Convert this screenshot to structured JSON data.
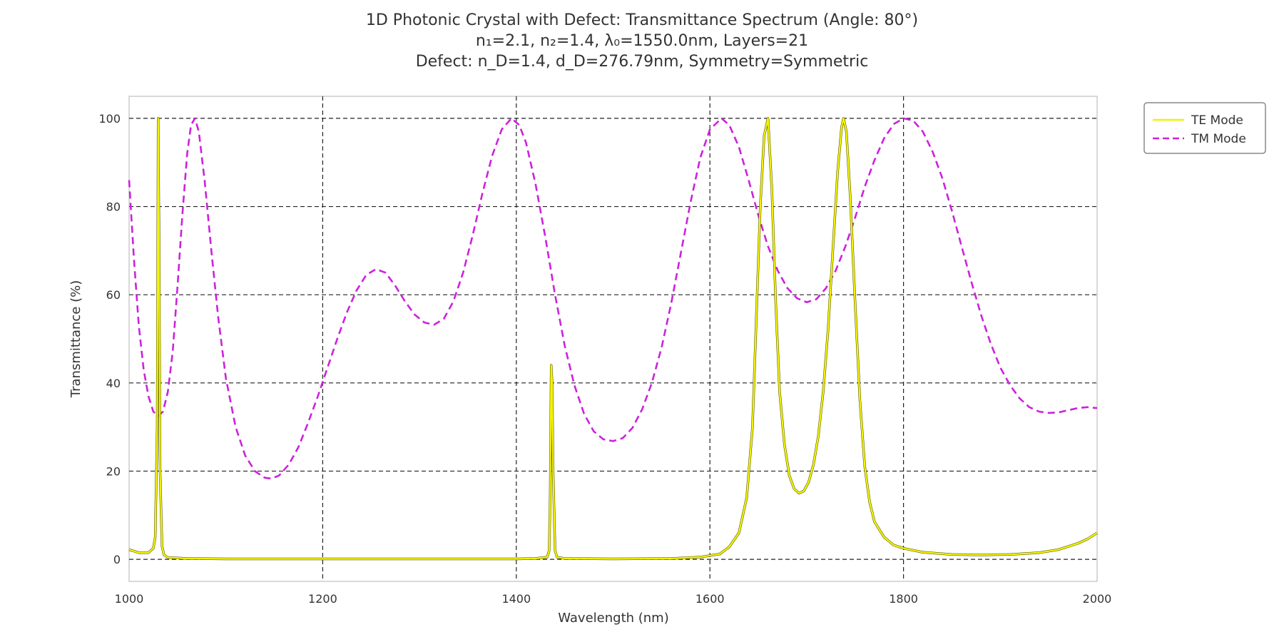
{
  "chart_data": {
    "type": "line",
    "title_lines": [
      "1D Photonic Crystal with Defect: Transmittance Spectrum (Angle: 80°)",
      "n₁=2.1, n₂=1.4, λ₀=1550.0nm, Layers=21",
      "Defect: n_D=1.4, d_D=276.79nm, Symmetry=Symmetric"
    ],
    "xlabel": "Wavelength (nm)",
    "ylabel": "Transmittance (%)",
    "xlim": [
      1000,
      2000
    ],
    "ylim": [
      -5,
      105
    ],
    "xticks": [
      1000,
      1200,
      1400,
      1600,
      1800,
      2000
    ],
    "xtick_labels": [
      "1000",
      "1200",
      "1400",
      "1600",
      "1800",
      "2000"
    ],
    "yticks": [
      0,
      20,
      40,
      60,
      80,
      100
    ],
    "ytick_labels": [
      "0",
      "20",
      "40",
      "60",
      "80",
      "100"
    ],
    "grid": true,
    "legend_position": "top-right",
    "series": [
      {
        "name": "TE Mode",
        "color": "#f2f200",
        "style": "solid",
        "points": [
          [
            1000,
            2.2
          ],
          [
            1010,
            1.5
          ],
          [
            1020,
            1.5
          ],
          [
            1025,
            2.5
          ],
          [
            1027,
            5
          ],
          [
            1029,
            30
          ],
          [
            1030,
            100
          ],
          [
            1031,
            70
          ],
          [
            1032,
            20
          ],
          [
            1034,
            3
          ],
          [
            1036,
            1
          ],
          [
            1040,
            0.4
          ],
          [
            1060,
            0.2
          ],
          [
            1100,
            0.1
          ],
          [
            1200,
            0.1
          ],
          [
            1300,
            0.1
          ],
          [
            1400,
            0.1
          ],
          [
            1420,
            0.2
          ],
          [
            1432,
            0.5
          ],
          [
            1434,
            2
          ],
          [
            1435,
            14
          ],
          [
            1436,
            44
          ],
          [
            1437,
            40
          ],
          [
            1438,
            20
          ],
          [
            1440,
            2
          ],
          [
            1442,
            0.5
          ],
          [
            1450,
            0.2
          ],
          [
            1500,
            0.1
          ],
          [
            1560,
            0.2
          ],
          [
            1590,
            0.5
          ],
          [
            1610,
            1.2
          ],
          [
            1620,
            2.8
          ],
          [
            1630,
            6
          ],
          [
            1638,
            14
          ],
          [
            1644,
            30
          ],
          [
            1648,
            55
          ],
          [
            1652,
            80
          ],
          [
            1656,
            96
          ],
          [
            1660,
            100
          ],
          [
            1664,
            84
          ],
          [
            1668,
            58
          ],
          [
            1672,
            38
          ],
          [
            1677,
            26
          ],
          [
            1682,
            19
          ],
          [
            1687,
            16
          ],
          [
            1692,
            15
          ],
          [
            1697,
            15.5
          ],
          [
            1702,
            17.5
          ],
          [
            1707,
            21.5
          ],
          [
            1712,
            28
          ],
          [
            1717,
            38
          ],
          [
            1722,
            52
          ],
          [
            1727,
            70
          ],
          [
            1732,
            88
          ],
          [
            1736,
            98
          ],
          [
            1738,
            100
          ],
          [
            1741,
            97
          ],
          [
            1745,
            82
          ],
          [
            1750,
            58
          ],
          [
            1755,
            36
          ],
          [
            1760,
            21
          ],
          [
            1765,
            13
          ],
          [
            1770,
            8.5
          ],
          [
            1780,
            5
          ],
          [
            1790,
            3.2
          ],
          [
            1800,
            2.5
          ],
          [
            1820,
            1.6
          ],
          [
            1850,
            1.1
          ],
          [
            1880,
            1.0
          ],
          [
            1910,
            1.1
          ],
          [
            1940,
            1.5
          ],
          [
            1960,
            2.2
          ],
          [
            1980,
            3.6
          ],
          [
            1990,
            4.6
          ],
          [
            2000,
            6
          ]
        ]
      },
      {
        "name": "TM Mode",
        "color": "#cc22dd",
        "style": "dashed",
        "points": [
          [
            1000,
            86
          ],
          [
            1005,
            68
          ],
          [
            1010,
            53
          ],
          [
            1015,
            43
          ],
          [
            1020,
            37
          ],
          [
            1025,
            33.5
          ],
          [
            1030,
            32.5
          ],
          [
            1035,
            33.5
          ],
          [
            1040,
            38
          ],
          [
            1045,
            47
          ],
          [
            1050,
            62
          ],
          [
            1055,
            78
          ],
          [
            1060,
            92
          ],
          [
            1064,
            98.5
          ],
          [
            1068,
            100
          ],
          [
            1072,
            97
          ],
          [
            1078,
            86
          ],
          [
            1085,
            70
          ],
          [
            1092,
            55
          ],
          [
            1100,
            41
          ],
          [
            1110,
            30
          ],
          [
            1120,
            23.5
          ],
          [
            1130,
            20
          ],
          [
            1140,
            18.5
          ],
          [
            1147,
            18.3
          ],
          [
            1155,
            19
          ],
          [
            1165,
            21.5
          ],
          [
            1175,
            25.5
          ],
          [
            1185,
            31
          ],
          [
            1195,
            37
          ],
          [
            1205,
            43.5
          ],
          [
            1215,
            50
          ],
          [
            1225,
            56
          ],
          [
            1235,
            61
          ],
          [
            1245,
            64.5
          ],
          [
            1255,
            65.8
          ],
          [
            1265,
            65
          ],
          [
            1275,
            62
          ],
          [
            1285,
            58.5
          ],
          [
            1295,
            55.5
          ],
          [
            1305,
            53.7
          ],
          [
            1315,
            53.2
          ],
          [
            1325,
            54.5
          ],
          [
            1335,
            58.5
          ],
          [
            1345,
            65
          ],
          [
            1355,
            73.5
          ],
          [
            1365,
            83
          ],
          [
            1375,
            91.5
          ],
          [
            1385,
            97.5
          ],
          [
            1395,
            100
          ],
          [
            1403,
            98.5
          ],
          [
            1410,
            94.5
          ],
          [
            1420,
            85
          ],
          [
            1430,
            73
          ],
          [
            1440,
            60
          ],
          [
            1450,
            48.5
          ],
          [
            1460,
            39.5
          ],
          [
            1470,
            33
          ],
          [
            1480,
            29
          ],
          [
            1490,
            27.2
          ],
          [
            1500,
            26.8
          ],
          [
            1510,
            27.5
          ],
          [
            1520,
            29.8
          ],
          [
            1530,
            34
          ],
          [
            1540,
            40
          ],
          [
            1550,
            48
          ],
          [
            1560,
            58
          ],
          [
            1570,
            69.5
          ],
          [
            1580,
            81
          ],
          [
            1590,
            91
          ],
          [
            1600,
            97.5
          ],
          [
            1612,
            100
          ],
          [
            1620,
            98.5
          ],
          [
            1630,
            93.5
          ],
          [
            1640,
            86
          ],
          [
            1650,
            78
          ],
          [
            1660,
            71
          ],
          [
            1670,
            65.5
          ],
          [
            1680,
            61.5
          ],
          [
            1690,
            59.2
          ],
          [
            1700,
            58.3
          ],
          [
            1710,
            59
          ],
          [
            1720,
            61.5
          ],
          [
            1730,
            65.5
          ],
          [
            1740,
            71
          ],
          [
            1750,
            77.5
          ],
          [
            1760,
            84.5
          ],
          [
            1770,
            90.5
          ],
          [
            1780,
            95.5
          ],
          [
            1790,
            98.7
          ],
          [
            1800,
            100
          ],
          [
            1810,
            99.5
          ],
          [
            1820,
            97
          ],
          [
            1830,
            92.5
          ],
          [
            1840,
            86.5
          ],
          [
            1850,
            79
          ],
          [
            1860,
            71
          ],
          [
            1870,
            63
          ],
          [
            1880,
            55.5
          ],
          [
            1890,
            49
          ],
          [
            1900,
            43.5
          ],
          [
            1910,
            39.5
          ],
          [
            1920,
            36.5
          ],
          [
            1930,
            34.5
          ],
          [
            1940,
            33.5
          ],
          [
            1950,
            33.2
          ],
          [
            1960,
            33.3
          ],
          [
            1970,
            33.8
          ],
          [
            1980,
            34.3
          ],
          [
            1990,
            34.5
          ],
          [
            2000,
            34.3
          ]
        ]
      }
    ]
  }
}
